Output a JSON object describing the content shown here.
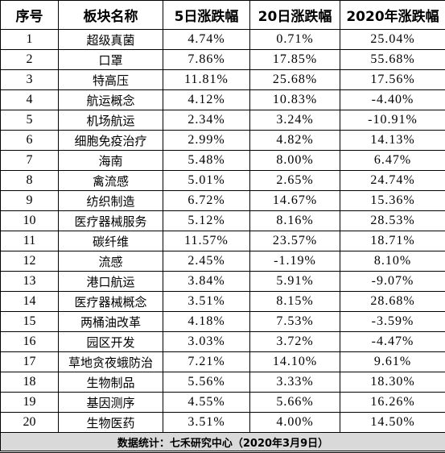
{
  "headers": [
    "序号",
    "板块名称",
    "5日涨跌幅",
    "20日涨跌幅",
    "2020年涨跌幅"
  ],
  "rows": [
    [
      "1",
      "超级真菌",
      "4.74%",
      "0.71%",
      "25.04%"
    ],
    [
      "2",
      "口罩",
      "7.86%",
      "17.85%",
      "55.68%"
    ],
    [
      "3",
      "特高压",
      "11.81%",
      "25.68%",
      "17.56%"
    ],
    [
      "4",
      "航运概念",
      "4.12%",
      "10.83%",
      "-4.40%"
    ],
    [
      "5",
      "机场航运",
      "2.34%",
      "3.24%",
      "-10.91%"
    ],
    [
      "6",
      "细胞免疫治疗",
      "2.99%",
      "4.82%",
      "14.13%"
    ],
    [
      "7",
      "海南",
      "5.48%",
      "8.00%",
      "6.47%"
    ],
    [
      "8",
      "禽流感",
      "5.01%",
      "2.65%",
      "24.74%"
    ],
    [
      "9",
      "纺织制造",
      "6.72%",
      "14.67%",
      "15.36%"
    ],
    [
      "10",
      "医疗器械服务",
      "5.12%",
      "8.16%",
      "28.53%"
    ],
    [
      "11",
      "碳纤维",
      "11.57%",
      "23.57%",
      "18.71%"
    ],
    [
      "12",
      "流感",
      "2.45%",
      "-1.19%",
      "8.10%"
    ],
    [
      "13",
      "港口航运",
      "3.84%",
      "5.91%",
      "-9.07%"
    ],
    [
      "14",
      "医疗器械概念",
      "3.51%",
      "8.15%",
      "28.68%"
    ],
    [
      "15",
      "两桶油改革",
      "4.18%",
      "7.53%",
      "-3.59%"
    ],
    [
      "16",
      "园区开发",
      "3.03%",
      "3.72%",
      "-4.47%"
    ],
    [
      "17",
      "草地贪夜蛾防治",
      "7.21%",
      "14.10%",
      "9.61%"
    ],
    [
      "18",
      "生物制品",
      "5.56%",
      "3.33%",
      "18.30%"
    ],
    [
      "19",
      "基因测序",
      "4.55%",
      "5.66%",
      "16.26%"
    ],
    [
      "20",
      "生物医药",
      "3.51%",
      "4.00%",
      "14.50%"
    ]
  ],
  "footer": "数据统计：七禾研究中心（2020年3月9日）"
}
